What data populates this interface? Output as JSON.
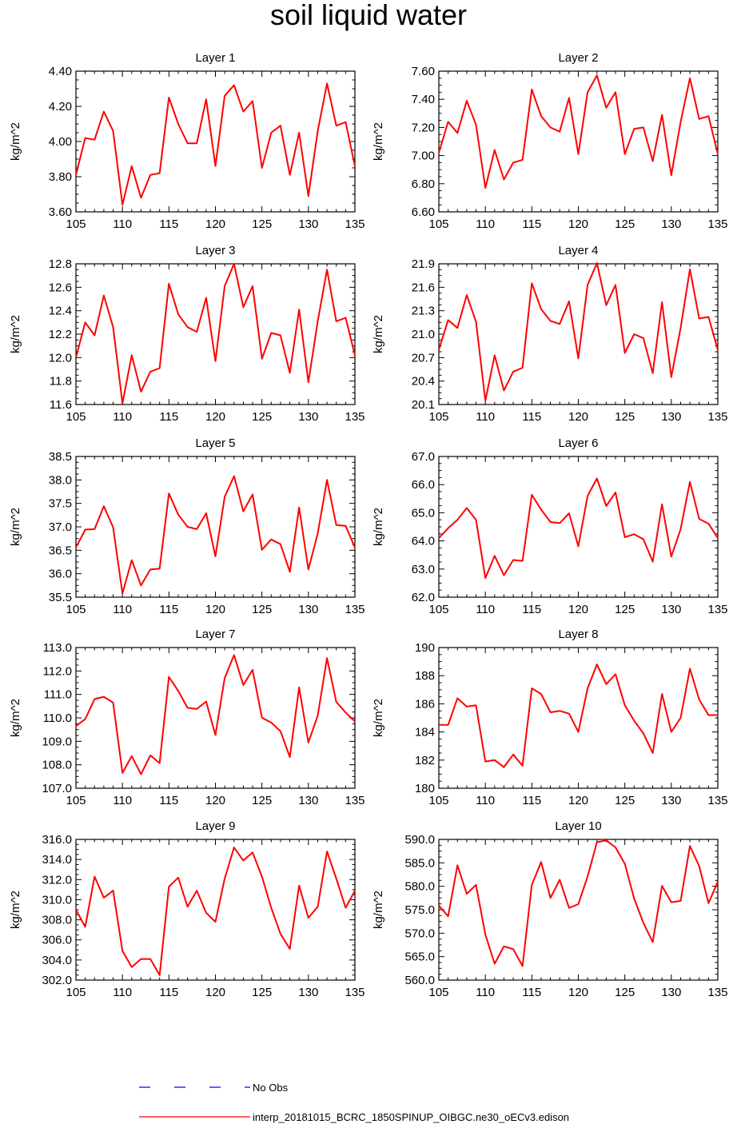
{
  "title": "soil liquid water",
  "ylabel": "kg/m^2",
  "x_ticks": [
    105,
    110,
    115,
    120,
    125,
    130,
    135
  ],
  "xlim": [
    105,
    135
  ],
  "colors": {
    "model": "#ff0000",
    "obs": "#0000ff"
  },
  "legend": {
    "obs_label": "No Obs",
    "model_label": "interp_20181015_BCRC_1850SPINUP_OIBGC.ne30_oECv3.edison"
  },
  "chart_data": [
    {
      "type": "line",
      "title": "Layer 1",
      "ylabel": "kg/m^2",
      "x_start": 105,
      "ylim": [
        3.6,
        4.4
      ],
      "y_ticks": [
        "3.60",
        "3.80",
        "4.00",
        "4.20",
        "4.40"
      ],
      "series": [
        {
          "values": [
            3.81,
            4.02,
            4.01,
            4.17,
            4.06,
            3.64,
            3.86,
            3.68,
            3.81,
            3.82,
            4.25,
            4.1,
            3.99,
            3.99,
            4.24,
            3.86,
            4.26,
            4.32,
            4.17,
            4.23,
            3.85,
            4.05,
            4.09,
            3.81,
            4.05,
            3.69,
            4.06,
            4.33,
            4.09,
            4.11,
            3.86
          ]
        }
      ]
    },
    {
      "type": "line",
      "title": "Layer 2",
      "ylabel": "kg/m^2",
      "x_start": 105,
      "ylim": [
        6.6,
        7.6
      ],
      "y_ticks": [
        "6.60",
        "6.80",
        "7.00",
        "7.20",
        "7.40",
        "7.60"
      ],
      "series": [
        {
          "values": [
            7.02,
            7.24,
            7.16,
            7.39,
            7.22,
            6.77,
            7.04,
            6.83,
            6.95,
            6.97,
            7.47,
            7.28,
            7.2,
            7.17,
            7.41,
            7.01,
            7.45,
            7.57,
            7.34,
            7.45,
            7.01,
            7.19,
            7.2,
            6.96,
            7.29,
            6.86,
            7.24,
            7.55,
            7.26,
            7.28,
            7.01
          ]
        }
      ]
    },
    {
      "type": "line",
      "title": "Layer 3",
      "ylabel": "kg/m^2",
      "x_start": 105,
      "ylim": [
        11.6,
        12.8
      ],
      "y_ticks": [
        "11.6",
        "11.8",
        "12.0",
        "12.2",
        "12.4",
        "12.6",
        "12.8"
      ],
      "series": [
        {
          "values": [
            12.0,
            12.3,
            12.19,
            12.53,
            12.26,
            11.61,
            12.02,
            11.71,
            11.88,
            11.91,
            12.63,
            12.37,
            12.26,
            12.22,
            12.51,
            11.97,
            12.61,
            12.8,
            12.43,
            12.61,
            11.99,
            12.21,
            12.19,
            11.87,
            12.41,
            11.79,
            12.31,
            12.75,
            12.31,
            12.34,
            12.02
          ]
        }
      ]
    },
    {
      "type": "line",
      "title": "Layer 4",
      "ylabel": "kg/m^2",
      "x_start": 105,
      "ylim": [
        20.1,
        21.9
      ],
      "y_ticks": [
        "20.1",
        "20.4",
        "20.7",
        "21.0",
        "21.3",
        "21.6",
        "21.9"
      ],
      "series": [
        {
          "values": [
            20.8,
            21.18,
            21.08,
            21.5,
            21.16,
            20.15,
            20.73,
            20.28,
            20.52,
            20.57,
            21.65,
            21.32,
            21.17,
            21.13,
            21.42,
            20.69,
            21.63,
            21.91,
            21.37,
            21.63,
            20.76,
            21.0,
            20.95,
            20.5,
            21.41,
            20.45,
            21.08,
            21.83,
            21.2,
            21.22,
            20.8
          ]
        }
      ]
    },
    {
      "type": "line",
      "title": "Layer 5",
      "ylabel": "kg/m^2",
      "x_start": 105,
      "ylim": [
        35.5,
        38.5
      ],
      "y_ticks": [
        "35.5",
        "36.0",
        "36.5",
        "37.0",
        "37.5",
        "38.0",
        "38.5"
      ],
      "series": [
        {
          "values": [
            36.56,
            36.94,
            36.95,
            37.44,
            36.99,
            35.58,
            36.29,
            35.75,
            36.09,
            36.11,
            37.71,
            37.26,
            37.0,
            36.95,
            37.29,
            36.37,
            37.64,
            38.08,
            37.33,
            37.69,
            36.51,
            36.73,
            36.63,
            36.04,
            37.41,
            36.09,
            36.86,
            38.0,
            37.04,
            37.02,
            36.56
          ]
        }
      ]
    },
    {
      "type": "line",
      "title": "Layer 6",
      "ylabel": "kg/m^2",
      "x_start": 105,
      "ylim": [
        62.0,
        67.0
      ],
      "y_ticks": [
        "62.0",
        "63.0",
        "64.0",
        "65.0",
        "66.0",
        "67.0"
      ],
      "series": [
        {
          "values": [
            64.1,
            64.45,
            64.75,
            65.17,
            64.75,
            62.68,
            63.47,
            62.78,
            63.32,
            63.29,
            65.64,
            65.11,
            64.67,
            64.63,
            64.98,
            63.81,
            65.6,
            66.22,
            65.24,
            65.72,
            64.13,
            64.24,
            64.06,
            63.26,
            65.3,
            63.44,
            64.42,
            66.1,
            64.78,
            64.61,
            64.1
          ]
        }
      ]
    },
    {
      "type": "line",
      "title": "Layer 7",
      "ylabel": "kg/m^2",
      "x_start": 105,
      "ylim": [
        107.0,
        113.0
      ],
      "y_ticks": [
        "107.0",
        "108.0",
        "109.0",
        "110.0",
        "111.0",
        "112.0",
        "113.0"
      ],
      "series": [
        {
          "values": [
            109.65,
            109.95,
            110.8,
            110.9,
            110.65,
            107.65,
            108.37,
            107.6,
            108.4,
            108.07,
            111.75,
            111.15,
            110.43,
            110.38,
            110.7,
            109.27,
            111.7,
            112.68,
            111.4,
            112.05,
            110.01,
            109.8,
            109.43,
            108.33,
            111.3,
            108.95,
            110.1,
            112.55,
            110.68,
            110.23,
            109.85
          ]
        }
      ]
    },
    {
      "type": "line",
      "title": "Layer 8",
      "ylabel": "kg/m^2",
      "x_start": 105,
      "ylim": [
        180,
        190
      ],
      "y_ticks": [
        "180",
        "182",
        "184",
        "186",
        "188",
        "190"
      ],
      "series": [
        {
          "values": [
            184.5,
            184.5,
            186.4,
            185.8,
            185.9,
            181.9,
            182.0,
            181.5,
            182.4,
            181.6,
            187.1,
            186.7,
            185.4,
            185.5,
            185.3,
            184.0,
            187.1,
            188.8,
            187.4,
            188.1,
            185.9,
            184.8,
            183.9,
            182.5,
            186.7,
            184.0,
            185.0,
            188.5,
            186.3,
            185.2,
            185.2
          ]
        }
      ]
    },
    {
      "type": "line",
      "title": "Layer 9",
      "ylabel": "kg/m^2",
      "x_start": 105,
      "ylim": [
        302.0,
        316.0
      ],
      "y_ticks": [
        "302.0",
        "304.0",
        "306.0",
        "308.0",
        "310.0",
        "312.0",
        "314.0",
        "316.0"
      ],
      "series": [
        {
          "values": [
            309.0,
            307.3,
            312.3,
            310.2,
            310.9,
            304.9,
            303.3,
            304.1,
            304.1,
            302.5,
            311.3,
            312.2,
            309.3,
            310.9,
            308.7,
            307.8,
            312.1,
            315.2,
            313.9,
            314.7,
            312.3,
            309.2,
            306.6,
            305.1,
            311.4,
            308.2,
            309.3,
            314.8,
            312.1,
            309.2,
            310.9
          ]
        }
      ]
    },
    {
      "type": "line",
      "title": "Layer 10",
      "ylabel": "kg/m^2",
      "x_start": 105,
      "ylim": [
        560.0,
        590.0
      ],
      "y_ticks": [
        "560.0",
        "565.0",
        "570.0",
        "575.0",
        "580.0",
        "585.0",
        "590.0"
      ],
      "series": [
        {
          "values": [
            575.9,
            573.6,
            584.5,
            578.4,
            580.3,
            569.7,
            563.5,
            567.2,
            566.6,
            563.0,
            580.3,
            585.2,
            577.5,
            581.4,
            575.4,
            576.2,
            582.1,
            589.4,
            589.8,
            588.3,
            584.8,
            577.4,
            572.2,
            568.1,
            580.1,
            576.6,
            576.9,
            588.6,
            584.3,
            576.4,
            581.0
          ]
        }
      ]
    }
  ]
}
